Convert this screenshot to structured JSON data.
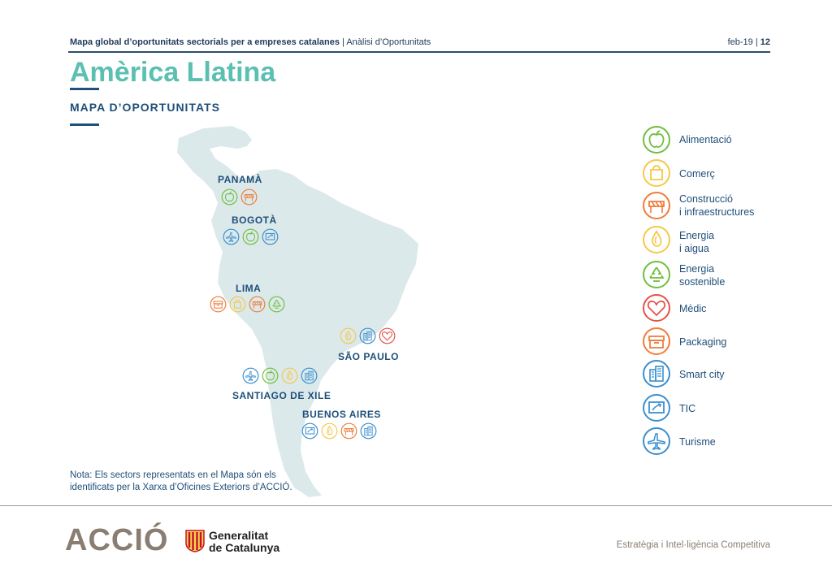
{
  "header": {
    "doc_title_bold": "Mapa global d’oportunitats sectorials per a empreses catalanes",
    "separator": " | ",
    "doc_section": "Anàlisi d’Oportunitats",
    "date": "feb-19",
    "page_separator": " | ",
    "page_number": "12"
  },
  "title": "Amèrica Llatina",
  "subtitle": "MAPA D’OPORTUNITATS",
  "cities": {
    "panama": "PANAMÀ",
    "bogota": "BOGOTÀ",
    "lima": "LIMA",
    "sao_paulo": "SÃO PAULO",
    "santiago": "SANTIAGO DE XILE",
    "buenos_aires": "BUENOS AIRES"
  },
  "legend": {
    "alimentacio": "Alimentació",
    "comerc": "Comerç",
    "construccio_1": "Construcció",
    "construccio_2": "i infraestructures",
    "energia_1": "Energia",
    "energia_2": "i aigua",
    "sostenible_1": "Energia",
    "sostenible_2": "sostenible",
    "medic": "Mèdic",
    "packaging": "Packaging",
    "smart_city": "Smart city",
    "tic": "TIC",
    "turisme": "Turisme"
  },
  "sector_colors": {
    "alimentacio": "#6fbf3f",
    "comerc": "#f5c84a",
    "construccio": "#ef7d3c",
    "energia": "#f5c84a",
    "sostenible": "#6fbf3f",
    "medic": "#e2554a",
    "packaging": "#ef7d3c",
    "smart_city": "#3a8fcf",
    "tic": "#3a8fcf",
    "turisme": "#3a8fcf"
  },
  "note_line1": "Nota: Els sectors representats en el Mapa són els",
  "note_line2": "identificats per la Xarxa d’Oficines Exteriors d’ACCIÓ.",
  "footer": {
    "brand": "ACCIÓ",
    "gov_line1": "Generalitat",
    "gov_line2": "de Catalunya",
    "department": "Estratègia i Intel·ligència Competitiva"
  }
}
